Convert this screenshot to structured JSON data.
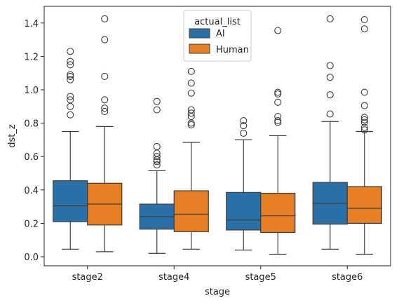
{
  "chart_data": {
    "type": "box",
    "xlabel": "stage",
    "ylabel": "dst_z",
    "ylim": [
      -0.04,
      1.5
    ],
    "yticks": [
      0.0,
      0.2,
      0.4,
      0.6,
      0.8,
      1.0,
      1.2,
      1.4
    ],
    "ytick_labels": [
      "0.0",
      "0.2",
      "0.4",
      "0.6",
      "0.8",
      "1.0",
      "1.2",
      "1.4"
    ],
    "categories": [
      "stage2",
      "stage4",
      "stage5",
      "stage6"
    ],
    "legend": {
      "title": "actual_list",
      "placement": "top-center"
    },
    "series": [
      {
        "name": "AI",
        "color": "#2a70a8",
        "boxes": [
          {
            "whisker_low": 0.045,
            "q1": 0.21,
            "median": 0.305,
            "q3": 0.455,
            "whisker_high": 0.75,
            "outliers": [
              0.85,
              0.9,
              0.94,
              0.96,
              1.06,
              1.08,
              1.09,
              1.15,
              1.17,
              1.23
            ]
          },
          {
            "whisker_low": 0.02,
            "q1": 0.165,
            "median": 0.24,
            "q3": 0.315,
            "whisker_high": 0.515,
            "outliers": [
              0.55,
              0.57,
              0.58,
              0.6,
              0.62,
              0.66,
              0.88,
              0.93
            ]
          },
          {
            "whisker_low": 0.04,
            "q1": 0.16,
            "median": 0.22,
            "q3": 0.385,
            "whisker_high": 0.7,
            "outliers": [
              0.74,
              0.785,
              0.815
            ]
          },
          {
            "whisker_low": 0.045,
            "q1": 0.195,
            "median": 0.32,
            "q3": 0.445,
            "whisker_high": 0.81,
            "outliers": [
              0.855,
              0.97,
              1.075,
              1.145,
              1.425
            ]
          }
        ]
      },
      {
        "name": "Human",
        "color": "#e67f26",
        "boxes": [
          {
            "whisker_low": 0.03,
            "q1": 0.19,
            "median": 0.315,
            "q3": 0.44,
            "whisker_high": 0.78,
            "outliers": [
              0.87,
              0.89,
              0.94,
              1.08,
              1.3,
              1.425
            ]
          },
          {
            "whisker_low": 0.045,
            "q1": 0.15,
            "median": 0.255,
            "q3": 0.395,
            "whisker_high": 0.685,
            "outliers": [
              0.79,
              0.8,
              0.84,
              0.86,
              0.88,
              0.98,
              1.04,
              1.11
            ]
          },
          {
            "whisker_low": 0.015,
            "q1": 0.145,
            "median": 0.245,
            "q3": 0.38,
            "whisker_high": 0.725,
            "outliers": [
              0.805,
              0.815,
              0.84,
              0.925,
              0.975,
              0.985,
              1.355
            ]
          },
          {
            "whisker_low": 0.015,
            "q1": 0.2,
            "median": 0.29,
            "q3": 0.42,
            "whisker_high": 0.75,
            "outliers": [
              0.76,
              0.775,
              0.805,
              0.82,
              0.835,
              0.905,
              0.985,
              1.365,
              1.42
            ]
          }
        ]
      }
    ]
  }
}
